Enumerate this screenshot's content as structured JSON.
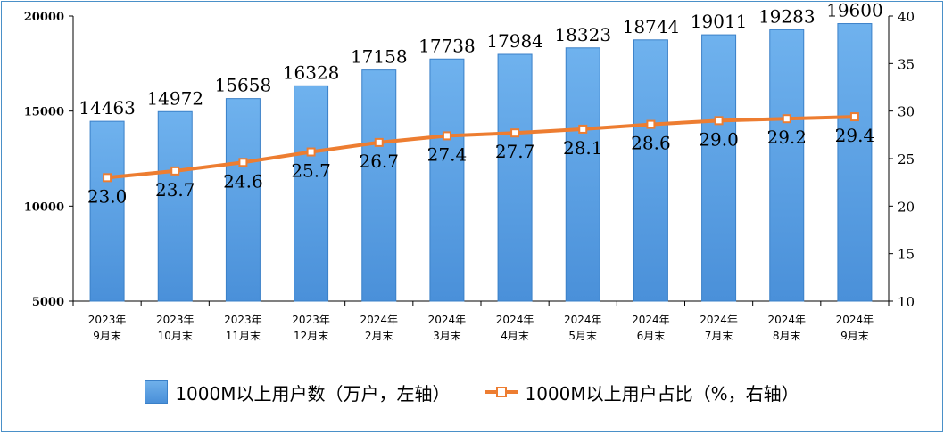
{
  "chart_data": {
    "type": "bar",
    "categories": [
      [
        "2023年",
        "9月末"
      ],
      [
        "2023年",
        "10月末"
      ],
      [
        "2023年",
        "11月末"
      ],
      [
        "2023年",
        "12月末"
      ],
      [
        "2024年",
        "2月末"
      ],
      [
        "2024年",
        "3月末"
      ],
      [
        "2024年",
        "4月末"
      ],
      [
        "2024年",
        "5月末"
      ],
      [
        "2024年",
        "6月末"
      ],
      [
        "2024年",
        "7月末"
      ],
      [
        "2024年",
        "8月末"
      ],
      [
        "2024年",
        "9月末"
      ]
    ],
    "series": [
      {
        "name": "1000M以上用户数（万户，左轴）",
        "type": "bar",
        "axis": "left",
        "color": "#5aa2e6",
        "values": [
          14463,
          14972,
          15658,
          16328,
          17158,
          17738,
          17984,
          18323,
          18744,
          19011,
          19283,
          19600
        ],
        "labels": [
          "14463",
          "14972",
          "15658",
          "16328",
          "17158",
          "17738",
          "17984",
          "18323",
          "18744",
          "19011",
          "19283",
          "19600"
        ]
      },
      {
        "name": "1000M以上用户占比（%，右轴）",
        "type": "line",
        "axis": "right",
        "color": "#ed7d31",
        "values": [
          23.0,
          23.7,
          24.6,
          25.7,
          26.7,
          27.4,
          27.7,
          28.1,
          28.6,
          29.0,
          29.2,
          29.4
        ],
        "labels": [
          "23.0",
          "23.7",
          "24.6",
          "25.7",
          "26.7",
          "27.4",
          "27.7",
          "28.1",
          "28.6",
          "29.0",
          "29.2",
          "29.4"
        ]
      }
    ],
    "y_left": {
      "min": 5000,
      "max": 20000,
      "ticks": [
        "5000",
        "10000",
        "15000",
        "20000"
      ]
    },
    "y_right": {
      "min": 10,
      "max": 40,
      "ticks": [
        "10",
        "15",
        "20",
        "25",
        "30",
        "35",
        "40"
      ]
    },
    "grid": false,
    "legend_position": "bottom"
  }
}
